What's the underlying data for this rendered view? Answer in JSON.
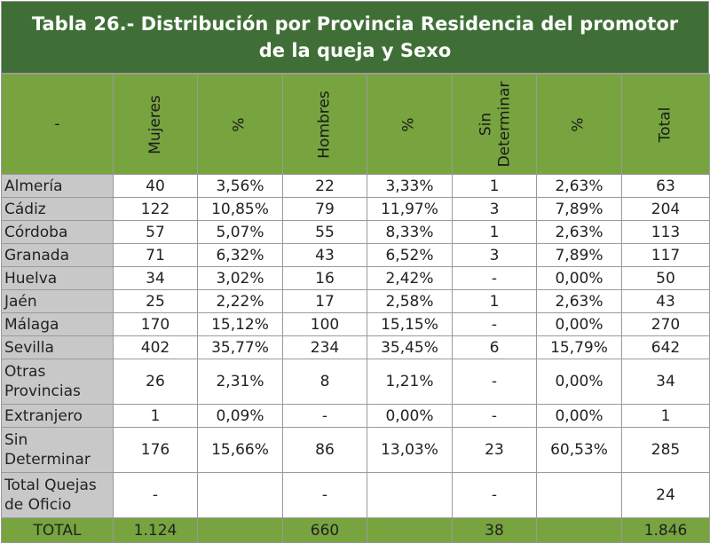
{
  "title": "Tabla 26.- Distribución por Provincia Residencia del promotor\nde la queja y Sexo",
  "headers": [
    "-",
    "Mujeres",
    "%",
    "Hombres",
    "%",
    "Sin\nDeterminar",
    "%",
    "Total"
  ],
  "rows": [
    {
      "label": "Almería",
      "cells": [
        "40",
        "3,56%",
        "22",
        "3,33%",
        "1",
        "2,63%",
        "63"
      ]
    },
    {
      "label": "Cádiz",
      "cells": [
        "122",
        "10,85%",
        "79",
        "11,97%",
        "3",
        "7,89%",
        "204"
      ]
    },
    {
      "label": "Córdoba",
      "cells": [
        "57",
        "5,07%",
        "55",
        "8,33%",
        "1",
        "2,63%",
        "113"
      ]
    },
    {
      "label": "Granada",
      "cells": [
        "71",
        "6,32%",
        "43",
        "6,52%",
        "3",
        "7,89%",
        "117"
      ]
    },
    {
      "label": "Huelva",
      "cells": [
        "34",
        "3,02%",
        "16",
        "2,42%",
        "-",
        "0,00%",
        "50"
      ]
    },
    {
      "label": "Jaén",
      "cells": [
        "25",
        "2,22%",
        "17",
        "2,58%",
        "1",
        "2,63%",
        "43"
      ]
    },
    {
      "label": "Málaga",
      "cells": [
        "170",
        "15,12%",
        "100",
        "15,15%",
        "-",
        "0,00%",
        "270"
      ]
    },
    {
      "label": "Sevilla",
      "cells": [
        "402",
        "35,77%",
        "234",
        "35,45%",
        "6",
        "15,79%",
        "642"
      ]
    },
    {
      "label": "Otras\nProvincias",
      "cells": [
        "26",
        "2,31%",
        "8",
        "1,21%",
        "-",
        "0,00%",
        "34"
      ]
    },
    {
      "label": "Extranjero",
      "cells": [
        "1",
        "0,09%",
        "-",
        "0,00%",
        "-",
        "0,00%",
        "1"
      ]
    },
    {
      "label": "Sin\nDeterminar",
      "cells": [
        "176",
        "15,66%",
        "86",
        "13,03%",
        "23",
        "60,53%",
        "285"
      ]
    },
    {
      "label": "Total Quejas\nde Oficio",
      "cells": [
        "-",
        "",
        "-",
        "",
        "-",
        "",
        "24"
      ]
    }
  ],
  "total_row": {
    "label": "TOTAL",
    "cells": [
      "1.124",
      "",
      "660",
      "",
      "38",
      "",
      "1.846"
    ]
  }
}
